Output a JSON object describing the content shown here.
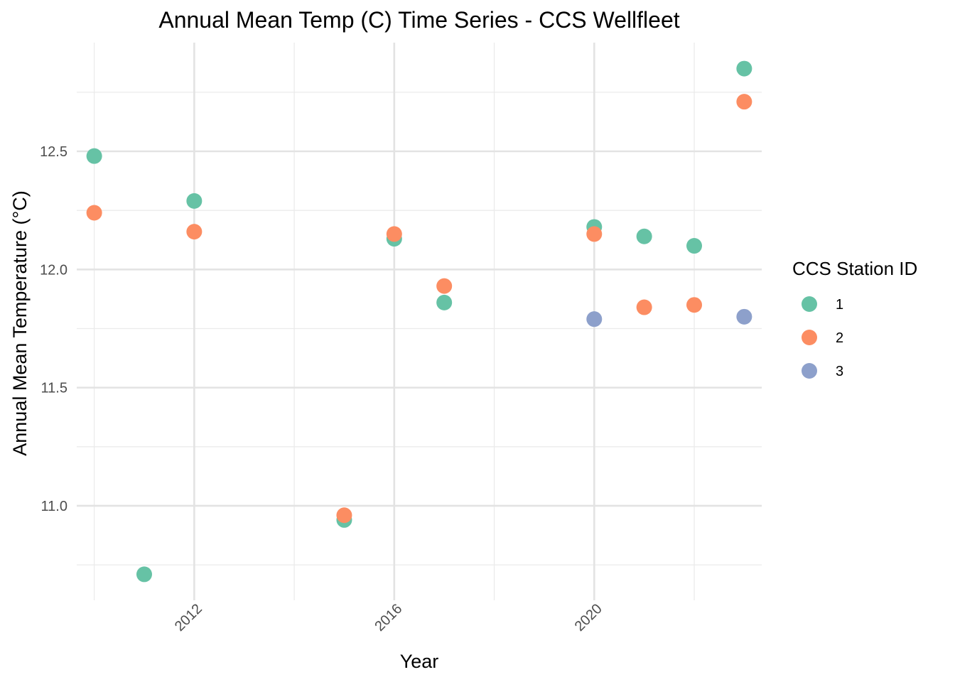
{
  "chart_data": {
    "type": "scatter",
    "title": "Annual Mean Temp (C) Time Series - CCS Wellfleet",
    "xlabel": "Year",
    "ylabel": "Annual Mean Temperature (°C)",
    "xlim": [
      2009.65,
      2023.35
    ],
    "ylim": [
      10.6,
      12.96
    ],
    "x_ticks": [
      2012,
      2016,
      2020
    ],
    "x_minor_ticks": [
      2010,
      2014,
      2018,
      2022
    ],
    "y_ticks": [
      11.0,
      11.5,
      12.0,
      12.5
    ],
    "y_minor_ticks": [
      10.75,
      11.25,
      11.75,
      12.25,
      12.75
    ],
    "grid": true,
    "legend": {
      "title": "CCS Station ID",
      "position": "right"
    },
    "series": [
      {
        "name": "1",
        "color": "#66c2a5",
        "points": [
          {
            "x": 2010,
            "y": 12.48
          },
          {
            "x": 2011,
            "y": 10.71
          },
          {
            "x": 2012,
            "y": 12.29
          },
          {
            "x": 2015,
            "y": 10.94
          },
          {
            "x": 2016,
            "y": 12.13
          },
          {
            "x": 2017,
            "y": 11.86
          },
          {
            "x": 2020,
            "y": 12.18
          },
          {
            "x": 2021,
            "y": 12.14
          },
          {
            "x": 2022,
            "y": 12.1
          },
          {
            "x": 2023,
            "y": 12.85
          }
        ]
      },
      {
        "name": "2",
        "color": "#fc8d62",
        "points": [
          {
            "x": 2010,
            "y": 12.24
          },
          {
            "x": 2012,
            "y": 12.16
          },
          {
            "x": 2015,
            "y": 10.96
          },
          {
            "x": 2016,
            "y": 12.15
          },
          {
            "x": 2017,
            "y": 11.93
          },
          {
            "x": 2020,
            "y": 12.15
          },
          {
            "x": 2021,
            "y": 11.84
          },
          {
            "x": 2022,
            "y": 11.85
          },
          {
            "x": 2023,
            "y": 12.71
          }
        ]
      },
      {
        "name": "3",
        "color": "#8da0cb",
        "points": [
          {
            "x": 2020,
            "y": 11.79
          },
          {
            "x": 2023,
            "y": 11.8
          }
        ]
      }
    ]
  }
}
